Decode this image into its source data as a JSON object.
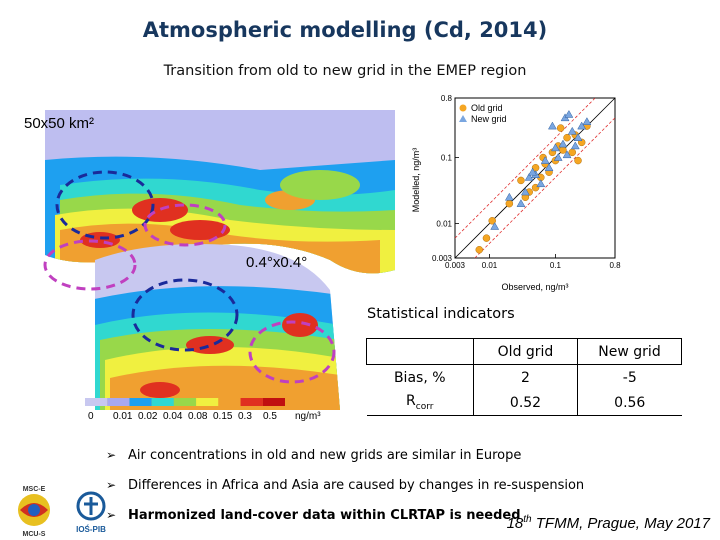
{
  "title": "Atmospheric modelling (Cd, 2014)",
  "subtitle": "Transition from old to new grid in the EMEP region",
  "map_old_label": "50x50 km²",
  "map_new_label": "0.4°x0.4°",
  "colorbar": {
    "ticks": [
      "0",
      "0.01",
      "0.02",
      "0.04",
      "0.08",
      "0.15",
      "0.3",
      "0.5"
    ],
    "unit": "ng/m³",
    "colors": [
      "#c8c8f0",
      "#a8a8f0",
      "#1ea0f0",
      "#30d8d0",
      "#98d84a",
      "#f0f040",
      "#f0a030",
      "#e03020",
      "#c01010"
    ]
  },
  "chart_data": {
    "type": "scatter",
    "xlabel": "Observed, ng/m³",
    "ylabel": "Modelled, ng/m³",
    "x_scale": "log",
    "y_scale": "log",
    "xlim": [
      0.003,
      0.8
    ],
    "ylim": [
      0.003,
      0.8
    ],
    "xticks": [
      "0.003",
      "0.01",
      "0.1",
      "0.8"
    ],
    "yticks": [
      "0.003",
      "0.01",
      "0.1",
      "0.8"
    ],
    "lines": [
      "1:1",
      "1:2",
      "2:1"
    ],
    "series": [
      {
        "name": "Old grid",
        "marker": "circle",
        "color": "#f5a623",
        "points": [
          [
            0.007,
            0.004
          ],
          [
            0.009,
            0.006
          ],
          [
            0.011,
            0.011
          ],
          [
            0.02,
            0.02
          ],
          [
            0.03,
            0.045
          ],
          [
            0.04,
            0.03
          ],
          [
            0.05,
            0.07
          ],
          [
            0.06,
            0.05
          ],
          [
            0.07,
            0.08
          ],
          [
            0.09,
            0.12
          ],
          [
            0.1,
            0.09
          ],
          [
            0.11,
            0.15
          ],
          [
            0.13,
            0.13
          ],
          [
            0.15,
            0.2
          ],
          [
            0.18,
            0.12
          ],
          [
            0.2,
            0.22
          ],
          [
            0.22,
            0.09
          ],
          [
            0.25,
            0.17
          ],
          [
            0.12,
            0.28
          ],
          [
            0.08,
            0.06
          ],
          [
            0.05,
            0.035
          ],
          [
            0.3,
            0.3
          ],
          [
            0.035,
            0.025
          ],
          [
            0.065,
            0.1
          ]
        ]
      },
      {
        "name": "New grid",
        "marker": "triangle",
        "color": "#7aa6e0",
        "points": [
          [
            0.012,
            0.009
          ],
          [
            0.02,
            0.025
          ],
          [
            0.03,
            0.02
          ],
          [
            0.04,
            0.05
          ],
          [
            0.05,
            0.055
          ],
          [
            0.06,
            0.04
          ],
          [
            0.07,
            0.09
          ],
          [
            0.08,
            0.07
          ],
          [
            0.1,
            0.14
          ],
          [
            0.11,
            0.1
          ],
          [
            0.13,
            0.16
          ],
          [
            0.15,
            0.11
          ],
          [
            0.18,
            0.25
          ],
          [
            0.2,
            0.15
          ],
          [
            0.22,
            0.2
          ],
          [
            0.25,
            0.3
          ],
          [
            0.3,
            0.35
          ],
          [
            0.14,
            0.4
          ],
          [
            0.16,
            0.45
          ],
          [
            0.045,
            0.06
          ],
          [
            0.09,
            0.3
          ],
          [
            0.035,
            0.03
          ]
        ]
      }
    ]
  },
  "stats": {
    "title": "Statistical indicators",
    "header": [
      "",
      "Old grid",
      "New grid"
    ],
    "rows": [
      {
        "label": "Bias, %",
        "old": "2",
        "new": "-5"
      },
      {
        "label_main": "R",
        "label_sub": "corr",
        "old": "0.52",
        "new": "0.56"
      }
    ]
  },
  "bullets": [
    "Air concentrations in old and new grids are similar in Europe",
    "Differences in Africa and Asia are caused by changes in re-suspension",
    "Harmonized land-cover data within CLRTAP is needed"
  ],
  "footer": {
    "num": "18",
    "sup": "th",
    "rest": " TFMM, Prague, May 2017"
  },
  "logos": {
    "msc": "MSC-E",
    "ios": "IOŚ-PIB",
    "mcu": "MCU-S"
  }
}
